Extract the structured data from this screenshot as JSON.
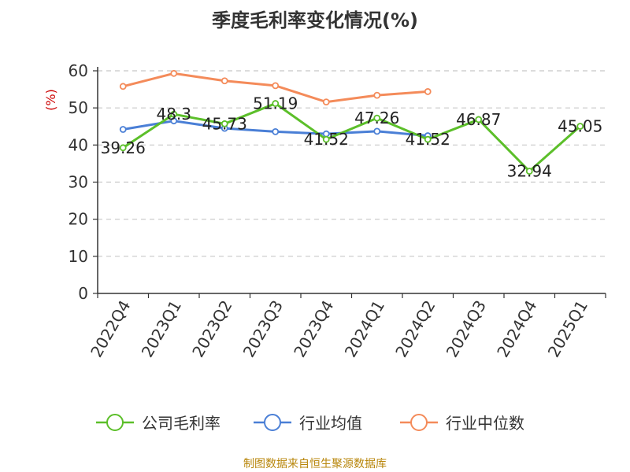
{
  "chart_data": {
    "type": "line",
    "title": "季度毛利率变化情况(%)",
    "ylabel": "(%)",
    "xlabel": "",
    "ylim": [
      0,
      60
    ],
    "yticks": [
      0,
      10,
      20,
      30,
      40,
      50,
      60
    ],
    "grid": true,
    "legend_position": "bottom",
    "categories": [
      "2022Q4",
      "2023Q1",
      "2023Q2",
      "2023Q3",
      "2023Q4",
      "2024Q1",
      "2024Q2",
      "2024Q3",
      "2024Q4",
      "2025Q1"
    ],
    "series": [
      {
        "name": "公司毛利率",
        "color": "#5cbf2a",
        "values": [
          39.26,
          48.3,
          45.73,
          51.19,
          41.52,
          47.26,
          41.52,
          46.87,
          32.94,
          45.05
        ],
        "labels": [
          "39.26",
          "48.3",
          "45.73",
          "51.19",
          "41.52",
          "47.26",
          "41.52",
          "46.87",
          "32.94",
          "45.05"
        ]
      },
      {
        "name": "行业均值",
        "color": "#4a7fd6",
        "values": [
          44.2,
          46.5,
          44.5,
          43.6,
          43.0,
          43.7,
          42.5,
          null,
          null,
          null
        ]
      },
      {
        "name": "行业中位数",
        "color": "#f48b5a",
        "values": [
          55.8,
          59.3,
          57.3,
          56.0,
          51.6,
          53.4,
          54.4,
          null,
          null,
          null
        ]
      }
    ],
    "source": "制图数据来自恒生聚源数据库"
  }
}
